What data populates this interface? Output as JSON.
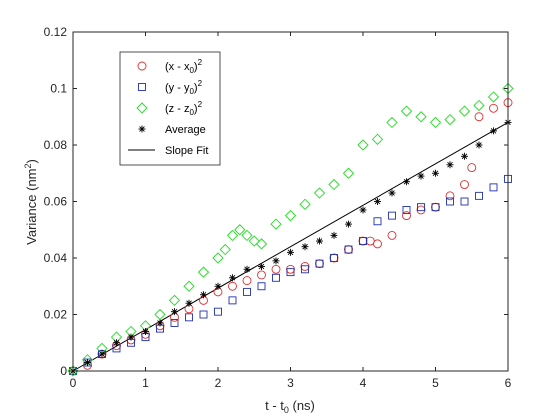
{
  "chart_data": {
    "type": "scatter",
    "xlabel": "t - t0 (ns)",
    "xlabel_base": "t - t",
    "xlabel_sub": "0",
    "xlabel_tail": " (ns)",
    "ylabel": "Variance (nm2)",
    "ylabel_base": "Variance (nm",
    "ylabel_sup": "2",
    "ylabel_tail": ")",
    "xlim": [
      0,
      6
    ],
    "ylim": [
      0,
      0.12
    ],
    "xticks": [
      "0",
      "1",
      "2",
      "3",
      "4",
      "5",
      "6"
    ],
    "yticks": [
      "0",
      "0.02",
      "0.04",
      "0.06",
      "0.08",
      "0.1",
      "0.12"
    ],
    "grid": false,
    "legend_position": "top-left",
    "series": [
      {
        "name": "(x - x0)2",
        "label_parts": [
          "(x - x",
          "0",
          ")",
          "2"
        ],
        "marker": "circle",
        "color": "#e03030",
        "x": [
          0.0,
          0.2,
          0.4,
          0.6,
          0.8,
          1.0,
          1.2,
          1.4,
          1.6,
          1.8,
          2.0,
          2.2,
          2.4,
          2.6,
          2.8,
          3.0,
          3.2,
          3.4,
          3.6,
          3.8,
          4.0,
          4.1,
          4.2,
          4.4,
          4.6,
          4.8,
          5.0,
          5.2,
          5.4,
          5.5,
          5.6,
          5.8,
          6.0
        ],
        "y": [
          0.0,
          0.002,
          0.006,
          0.009,
          0.011,
          0.013,
          0.016,
          0.019,
          0.022,
          0.025,
          0.028,
          0.03,
          0.032,
          0.034,
          0.036,
          0.036,
          0.037,
          0.038,
          0.04,
          0.043,
          0.046,
          0.046,
          0.045,
          0.048,
          0.055,
          0.057,
          0.058,
          0.062,
          0.066,
          0.072,
          0.09,
          0.093,
          0.095
        ]
      },
      {
        "name": "(y - y0)2",
        "label_parts": [
          "(y - y",
          "0",
          ")",
          "2"
        ],
        "marker": "square",
        "color": "#1f2fb0",
        "x": [
          0.0,
          0.2,
          0.4,
          0.6,
          0.8,
          1.0,
          1.2,
          1.4,
          1.6,
          1.8,
          2.0,
          2.2,
          2.4,
          2.6,
          2.8,
          3.0,
          3.2,
          3.4,
          3.6,
          3.8,
          4.0,
          4.2,
          4.4,
          4.6,
          4.8,
          5.0,
          5.2,
          5.4,
          5.6,
          5.8,
          6.0
        ],
        "y": [
          0.0,
          0.003,
          0.006,
          0.008,
          0.01,
          0.012,
          0.015,
          0.017,
          0.019,
          0.02,
          0.021,
          0.025,
          0.028,
          0.03,
          0.033,
          0.035,
          0.036,
          0.038,
          0.04,
          0.043,
          0.046,
          0.053,
          0.055,
          0.057,
          0.058,
          0.058,
          0.06,
          0.06,
          0.062,
          0.065,
          0.068
        ]
      },
      {
        "name": "(z - z0)2",
        "label_parts": [
          "(z - z",
          "0",
          ")",
          "2"
        ],
        "marker": "diamond",
        "color": "#22dd22",
        "x": [
          0.0,
          0.2,
          0.4,
          0.6,
          0.8,
          1.0,
          1.2,
          1.4,
          1.6,
          1.8,
          2.0,
          2.1,
          2.2,
          2.3,
          2.4,
          2.5,
          2.6,
          2.8,
          3.0,
          3.2,
          3.4,
          3.6,
          3.8,
          4.0,
          4.2,
          4.4,
          4.6,
          4.8,
          5.0,
          5.2,
          5.4,
          5.6,
          5.8,
          6.0
        ],
        "y": [
          0.0,
          0.004,
          0.008,
          0.012,
          0.014,
          0.016,
          0.02,
          0.025,
          0.03,
          0.035,
          0.04,
          0.043,
          0.048,
          0.05,
          0.048,
          0.046,
          0.045,
          0.052,
          0.055,
          0.059,
          0.063,
          0.066,
          0.07,
          0.08,
          0.082,
          0.088,
          0.092,
          0.09,
          0.088,
          0.089,
          0.092,
          0.094,
          0.097,
          0.1
        ]
      },
      {
        "name": "Average",
        "label_parts": [
          "Average"
        ],
        "marker": "star",
        "color": "#000000",
        "x": [
          0.0,
          0.2,
          0.4,
          0.6,
          0.8,
          1.0,
          1.2,
          1.4,
          1.6,
          1.8,
          2.0,
          2.2,
          2.4,
          2.6,
          2.8,
          3.0,
          3.2,
          3.4,
          3.6,
          3.8,
          4.0,
          4.2,
          4.4,
          4.6,
          4.8,
          5.0,
          5.2,
          5.4,
          5.6,
          5.8,
          6.0
        ],
        "y": [
          0.0,
          0.003,
          0.006,
          0.01,
          0.012,
          0.014,
          0.017,
          0.021,
          0.024,
          0.027,
          0.03,
          0.033,
          0.036,
          0.037,
          0.039,
          0.042,
          0.044,
          0.046,
          0.048,
          0.052,
          0.057,
          0.06,
          0.063,
          0.067,
          0.069,
          0.07,
          0.073,
          0.076,
          0.08,
          0.085,
          0.088
        ]
      }
    ],
    "fit_line": {
      "name": "Slope Fit",
      "label_parts": [
        "Slope Fit"
      ],
      "color": "#000000",
      "x": [
        0,
        6
      ],
      "y": [
        0,
        0.088
      ]
    }
  }
}
